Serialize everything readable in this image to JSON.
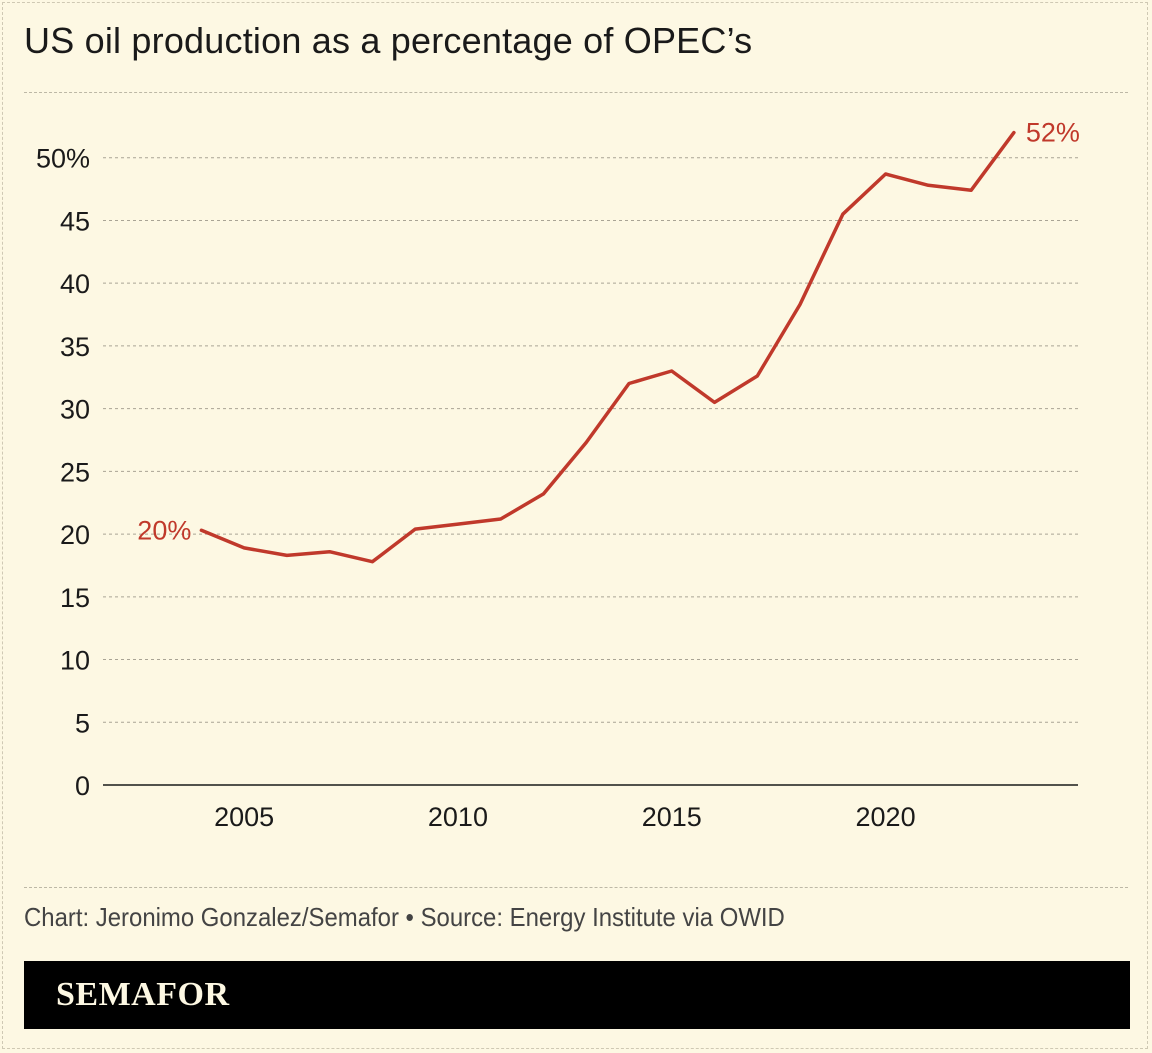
{
  "title": "US oil production as a percentage of OPEC’s",
  "credit": "Chart: Jeronimo Gonzalez/Semafor • Source: Energy Institute via OWID",
  "brand": "SEMAFOR",
  "colors": {
    "background": "#fdf8e3",
    "line": "#c0392b",
    "text": "#1a1a1a"
  },
  "chart_data": {
    "type": "line",
    "title": "US oil production as a percentage of OPEC’s",
    "xlabel": "",
    "ylabel": "",
    "x": [
      2004,
      2005,
      2006,
      2007,
      2008,
      2009,
      2010,
      2011,
      2012,
      2013,
      2014,
      2015,
      2016,
      2017,
      2018,
      2019,
      2020,
      2021,
      2022,
      2023
    ],
    "series": [
      {
        "values": [
          20.3,
          18.9,
          18.3,
          18.6,
          17.8,
          20.4,
          20.8,
          21.2,
          23.2,
          27.3,
          32.0,
          33.0,
          30.5,
          32.6,
          38.3,
          45.5,
          48.7,
          47.8,
          47.4,
          52.0
        ]
      }
    ],
    "ylim": [
      0,
      55
    ],
    "xlim": [
      2001.7,
      2024.5
    ],
    "yticks": [
      0,
      5,
      10,
      15,
      20,
      25,
      30,
      35,
      40,
      45,
      50
    ],
    "ytick_labels": [
      "0",
      "5",
      "10",
      "15",
      "20",
      "25",
      "30",
      "35",
      "40",
      "45",
      "50%"
    ],
    "xticks": [
      2005,
      2010,
      2015,
      2020
    ],
    "xtick_labels": [
      "2005",
      "2010",
      "2015",
      "2020"
    ],
    "annotations": [
      {
        "text": "20%",
        "x": 2004,
        "y": 20.3,
        "side": "left"
      },
      {
        "text": "52%",
        "x": 2023,
        "y": 52.0,
        "side": "right"
      }
    ],
    "grid": true
  }
}
